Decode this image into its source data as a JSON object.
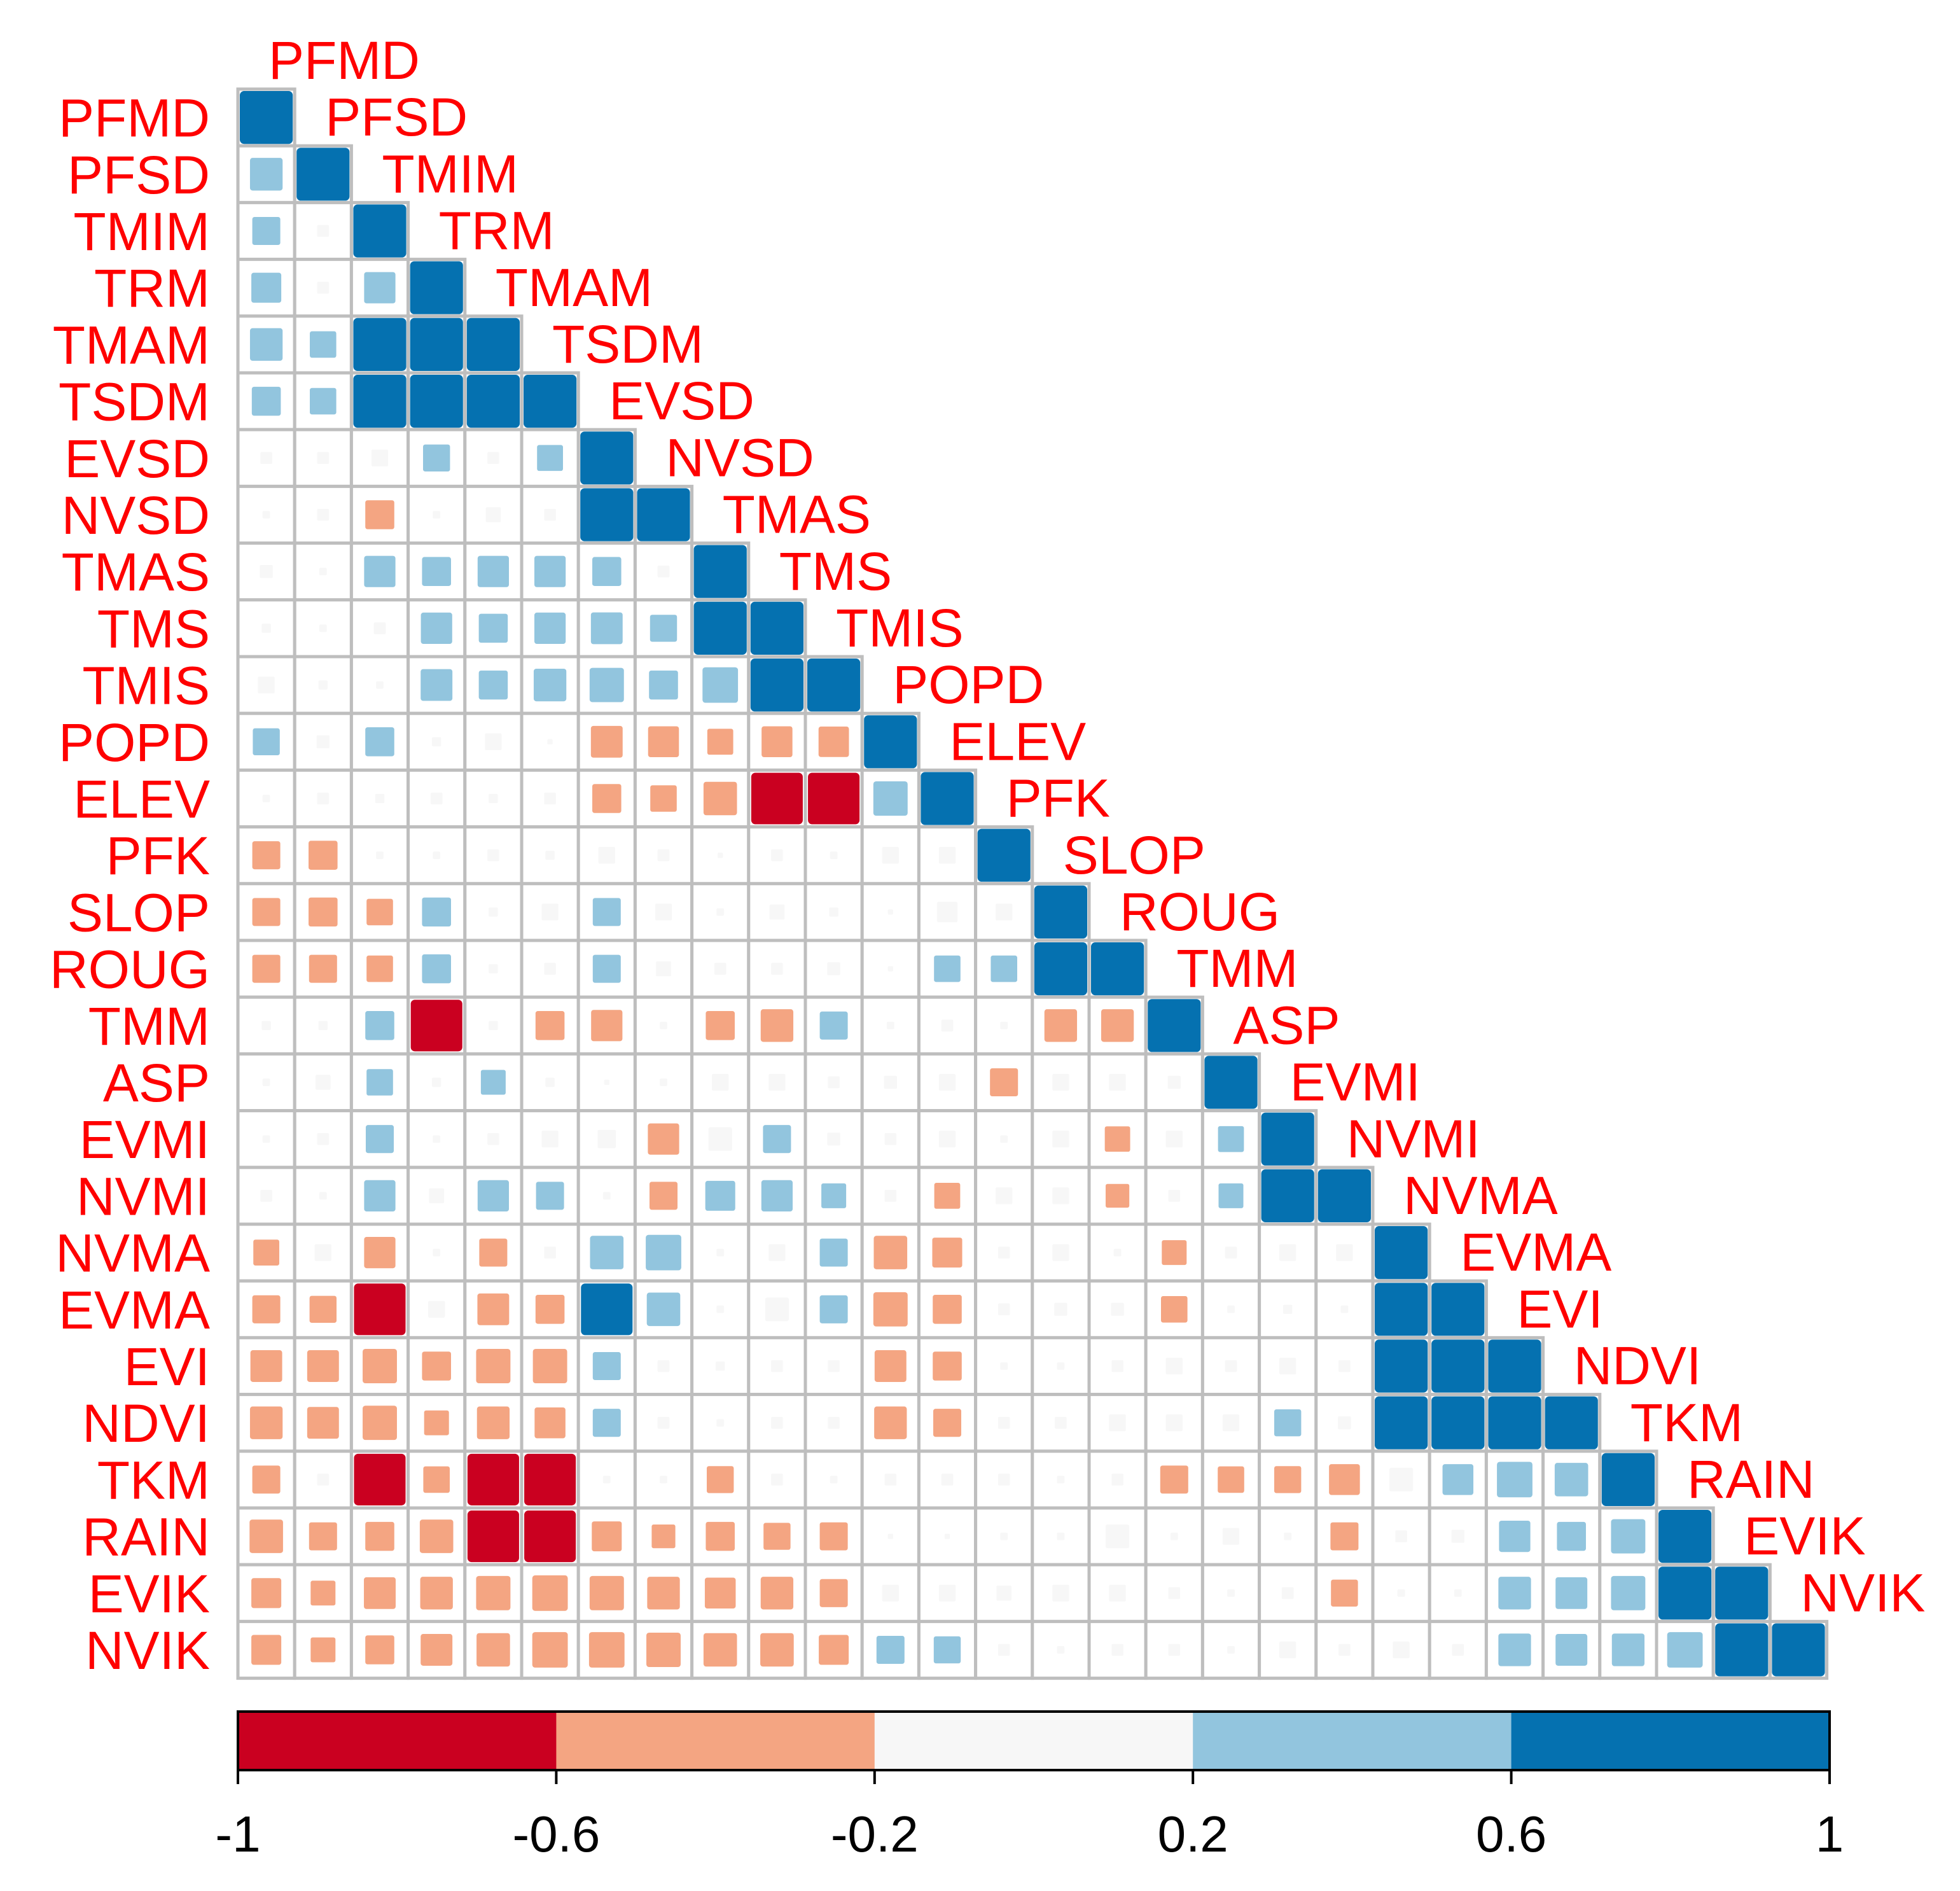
{
  "chart_data": {
    "type": "heatmap",
    "subtype": "correlation-matrix-lower-triangle",
    "variables": [
      "PFMD",
      "PFSD",
      "TMIM",
      "TRM",
      "TMAM",
      "TSDM",
      "EVSD",
      "NVSD",
      "TMAS",
      "TMS",
      "TMIS",
      "POPD",
      "ELEV",
      "PFK",
      "SLOP",
      "ROUG",
      "TMM",
      "ASP",
      "EVMI",
      "NVMI",
      "NVMA",
      "EVMA",
      "EVI",
      "NDVI",
      "TKM",
      "RAIN",
      "EVIK",
      "NVIK"
    ],
    "correlations": [
      [
        1.0
      ],
      [
        0.38,
        1.0
      ],
      [
        0.28,
        0.05,
        1.0
      ],
      [
        0.32,
        0.05,
        0.35,
        1.0
      ],
      [
        0.38,
        0.25,
        1.0,
        1.0,
        1.0
      ],
      [
        0.3,
        0.25,
        1.0,
        1.0,
        1.0,
        1.0
      ],
      [
        0.05,
        0.05,
        0.1,
        0.26,
        0.05,
        0.24,
        1.0
      ],
      [
        0.02,
        0.05,
        -0.3,
        0.02,
        0.08,
        0.05,
        1.0,
        1.0
      ],
      [
        0.06,
        0.02,
        0.35,
        0.3,
        0.35,
        0.35,
        0.3,
        0.05,
        1.0
      ],
      [
        0.03,
        0.02,
        0.05,
        0.35,
        0.3,
        0.35,
        0.36,
        0.26,
        1.0,
        1.0
      ],
      [
        0.1,
        0.03,
        0.02,
        0.36,
        0.3,
        0.38,
        0.42,
        0.3,
        0.45,
        1.0,
        1.0
      ],
      [
        0.26,
        0.06,
        0.3,
        0.03,
        0.1,
        0.01,
        -0.36,
        -0.34,
        -0.24,
        -0.34,
        -0.33,
        1.0
      ],
      [
        0.02,
        0.05,
        0.03,
        0.05,
        0.03,
        0.05,
        -0.3,
        -0.25,
        -0.4,
        -0.95,
        -0.95,
        0.42,
        1.0
      ],
      [
        -0.28,
        -0.3,
        0.02,
        0.02,
        0.05,
        0.03,
        0.1,
        0.05,
        0.01,
        0.05,
        0.02,
        0.1,
        0.1,
        1.0
      ],
      [
        -0.28,
        -0.3,
        -0.25,
        0.3,
        0.03,
        0.1,
        0.28,
        0.1,
        0.02,
        0.08,
        0.03,
        0.01,
        0.15,
        0.1,
        1.0
      ],
      [
        -0.28,
        -0.28,
        -0.25,
        0.3,
        0.03,
        0.05,
        0.28,
        0.08,
        0.05,
        0.05,
        0.06,
        0.01,
        0.25,
        0.25,
        1.0,
        1.0
      ],
      [
        0.03,
        0.03,
        0.3,
        -0.95,
        0.03,
        -0.3,
        -0.35,
        0.02,
        -0.3,
        -0.38,
        0.28,
        0.02,
        0.05,
        0.02,
        -0.38,
        -0.38,
        1.0
      ],
      [
        0.02,
        0.08,
        0.25,
        0.03,
        0.22,
        0.03,
        0.01,
        0.02,
        0.1,
        0.1,
        0.05,
        0.06,
        0.1,
        -0.28,
        0.1,
        0.1,
        0.06,
        1.0
      ],
      [
        0.02,
        0.05,
        0.28,
        0.02,
        0.05,
        0.1,
        0.12,
        -0.35,
        0.2,
        0.28,
        0.06,
        0.05,
        0.1,
        0.02,
        0.1,
        -0.23,
        0.1,
        0.24,
        1.0
      ],
      [
        0.05,
        0.02,
        0.35,
        0.08,
        0.35,
        0.28,
        0.02,
        -0.28,
        0.32,
        0.35,
        0.22,
        0.05,
        -0.24,
        0.1,
        0.1,
        -0.2,
        0.05,
        0.22,
        1.0,
        1.0
      ],
      [
        -0.24,
        0.1,
        -0.35,
        0.02,
        -0.28,
        0.05,
        0.4,
        0.45,
        0.02,
        0.1,
        0.28,
        -0.4,
        -0.32,
        0.05,
        0.1,
        0.02,
        -0.22,
        0.05,
        0.1,
        0.1,
        1.0
      ],
      [
        -0.28,
        -0.26,
        -0.95,
        0.1,
        -0.36,
        -0.3,
        0.95,
        0.4,
        0.02,
        0.2,
        0.28,
        -0.42,
        -0.3,
        0.05,
        0.06,
        0.06,
        -0.25,
        0.02,
        0.03,
        0.02,
        1.0,
        1.0
      ],
      [
        -0.36,
        -0.36,
        -0.42,
        -0.3,
        -0.42,
        -0.42,
        0.28,
        0.05,
        0.03,
        0.05,
        0.05,
        -0.36,
        -0.3,
        0.02,
        0.02,
        0.05,
        0.1,
        0.05,
        0.1,
        0.05,
        1.0,
        1.0,
        1.0
      ],
      [
        -0.38,
        -0.36,
        -0.42,
        -0.22,
        -0.38,
        -0.34,
        0.28,
        0.05,
        0.02,
        0.05,
        0.05,
        -0.38,
        -0.28,
        0.05,
        0.05,
        0.1,
        0.1,
        0.1,
        0.26,
        0.06,
        1.0,
        1.0,
        1.0,
        1.0
      ],
      [
        -0.28,
        0.05,
        -0.95,
        -0.25,
        -0.95,
        -0.95,
        0.02,
        0.02,
        -0.26,
        0.05,
        0.02,
        0.05,
        0.05,
        0.05,
        0.02,
        0.05,
        -0.28,
        -0.25,
        -0.26,
        -0.34,
        0.2,
        0.34,
        0.45,
        0.4,
        1.0
      ],
      [
        -0.4,
        -0.28,
        -0.3,
        -0.4,
        -0.95,
        -0.95,
        -0.32,
        -0.2,
        -0.3,
        -0.26,
        -0.28,
        0.01,
        0.01,
        0.02,
        0.02,
        0.2,
        0.02,
        0.1,
        0.02,
        -0.28,
        0.05,
        0.06,
        0.35,
        0.3,
        0.42,
        1.0
      ],
      [
        -0.32,
        -0.22,
        -0.36,
        -0.38,
        -0.42,
        -0.45,
        -0.42,
        -0.38,
        -0.34,
        -0.38,
        -0.28,
        0.1,
        0.1,
        0.08,
        0.1,
        0.1,
        0.05,
        0.02,
        0.05,
        -0.26,
        0.02,
        0.02,
        0.38,
        0.36,
        0.42,
        1.0,
        1.0
      ],
      [
        -0.32,
        -0.22,
        -0.3,
        -0.36,
        -0.4,
        -0.45,
        -0.45,
        -0.42,
        -0.4,
        -0.4,
        -0.32,
        0.28,
        0.26,
        0.05,
        0.02,
        0.05,
        0.05,
        0.02,
        0.1,
        0.05,
        0.1,
        0.05,
        0.38,
        0.36,
        0.38,
        0.45,
        1.0,
        1.0
      ]
    ],
    "colorbar": {
      "ticks": [
        "-1",
        "-0.6",
        "-0.2",
        "0.2",
        "0.6",
        "1"
      ],
      "breaks": [
        -1,
        -0.6,
        -0.2,
        0.2,
        0.6,
        1
      ],
      "colors": [
        "#CA0020",
        "#F4A582",
        "#F7F7F7",
        "#92C5DE",
        "#0571B0"
      ]
    },
    "label_color": "#FF0000",
    "grid_color": "#BEBEBE"
  }
}
